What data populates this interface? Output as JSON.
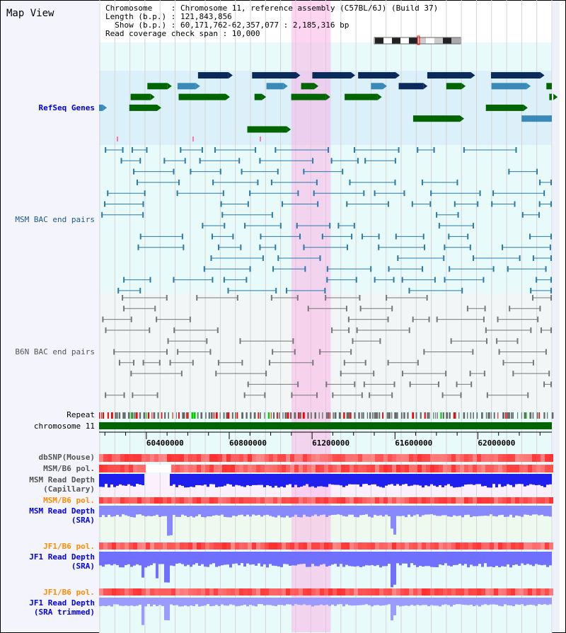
{
  "header": {
    "title": "Map View",
    "lines": [
      "Chromosome    : Chromosome 11, reference assembly (C57BL/6J) (Build 37)",
      "Length (b.p.) : 121,843,856",
      "  Show (b.p.) : 60,171,762-62,357,077 : 2,185,316 bp",
      "Read coverage check span : 10,000"
    ]
  },
  "view": {
    "start": 60171762,
    "end": 62357077,
    "highlight": [
      61100000,
      61290000
    ]
  },
  "tracks": {
    "refseq": "RefSeq Genes",
    "msm_bac": "MSM BAC end pairs",
    "b6n_bac": "B6N BAC end pairs",
    "repeat": "Repeat",
    "chrom": "chromosome 11",
    "dbsnp": "dbSNP(Mouse)",
    "msm_pol1": "MSM/B6 pol.",
    "msm_cap": "MSM Read Depth\n(Capillary)",
    "msm_pol2": "MSM/B6 pol.",
    "msm_sra": "MSM Read Depth\n(SRA)",
    "jf1_pol1": "JF1/B6 pol.",
    "jf1_sra": "JF1 Read Depth\n(SRA)",
    "jf1_pol2": "JF1/B6 pol.",
    "jf1_trim": "JF1 Read Depth\n(SRA trimmed)"
  },
  "axis": {
    "ticks": [
      "60400000",
      "60800000",
      "61200000",
      "61600000",
      "62000000"
    ],
    "tick_values": [
      60400000,
      60800000,
      61200000,
      61600000,
      62000000
    ]
  },
  "colors": {
    "refseq_label": "#0000cc",
    "msm_label": "#1a5a8a",
    "b6n_label": "#555555",
    "orange": "#ff8c00",
    "blue": "#0000ee",
    "gene_dark": "#0a2a5a",
    "gene_mid": "#3a8ab8",
    "gene_green": "#006400"
  }
}
